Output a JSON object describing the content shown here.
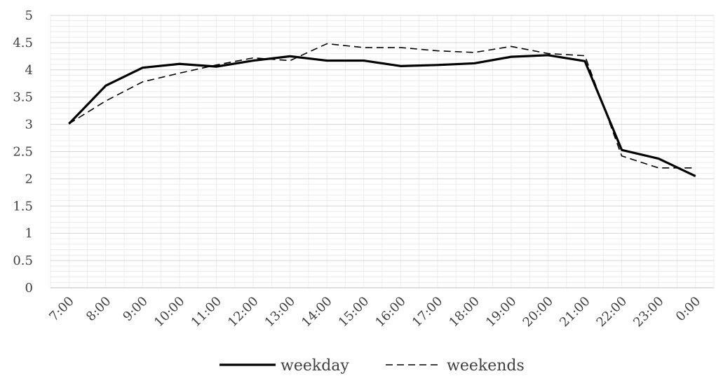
{
  "chart_data": {
    "type": "line",
    "categories": [
      "7:00",
      "8:00",
      "9:00",
      "10:00",
      "11:00",
      "12:00",
      "13:00",
      "14:00",
      "15:00",
      "16:00",
      "17:00",
      "18:00",
      "19:00",
      "20:00",
      "21:00",
      "22:00",
      "23:00",
      "0:00"
    ],
    "y_ticks": [
      "0",
      "0.5",
      "1",
      "1.5",
      "2",
      "2.5",
      "3",
      "3.5",
      "4",
      "4.5",
      "5"
    ],
    "ylim": [
      0,
      5
    ],
    "grid": true,
    "legend_position": "bottom",
    "series": [
      {
        "name": "weekday",
        "style": "solid",
        "color": "#000000",
        "values": [
          3.01,
          3.71,
          4.04,
          4.11,
          4.06,
          4.17,
          4.25,
          4.17,
          4.17,
          4.07,
          4.09,
          4.12,
          4.24,
          4.27,
          4.16,
          2.53,
          2.37,
          2.05
        ]
      },
      {
        "name": "weekends",
        "style": "dashed",
        "color": "#000000",
        "values": [
          3.01,
          3.43,
          3.78,
          3.94,
          4.09,
          4.22,
          4.17,
          4.48,
          4.41,
          4.41,
          4.35,
          4.32,
          4.43,
          4.3,
          4.26,
          2.42,
          2.2,
          2.2
        ]
      }
    ]
  }
}
